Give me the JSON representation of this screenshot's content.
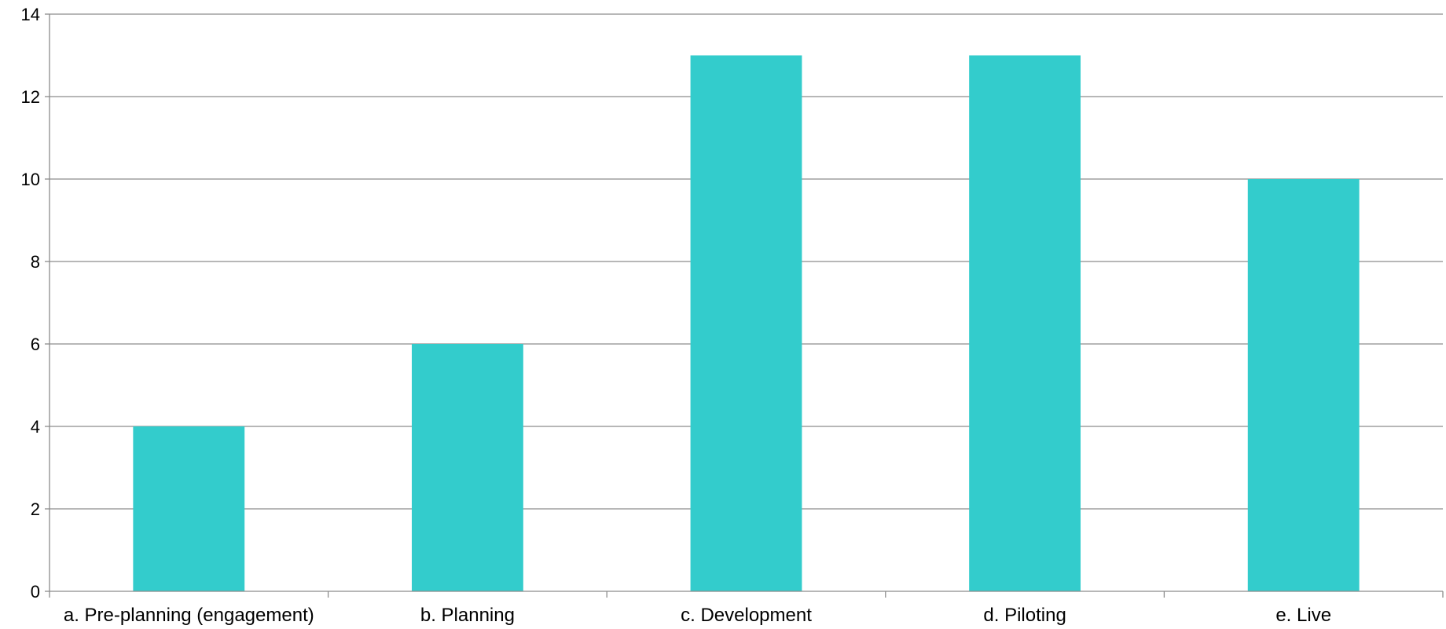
{
  "chart_data": {
    "type": "bar",
    "categories": [
      "a. Pre-planning (engagement)",
      "b. Planning",
      "c. Development",
      "d. Piloting",
      "e. Live"
    ],
    "values": [
      4,
      6,
      13,
      13,
      10
    ],
    "title": "",
    "xlabel": "",
    "ylabel": "",
    "ylim": [
      0,
      14
    ],
    "yticks": [
      0,
      2,
      4,
      6,
      8,
      10,
      12,
      14
    ],
    "grid": true,
    "legend": "none",
    "bar_color": "#33cccc"
  }
}
